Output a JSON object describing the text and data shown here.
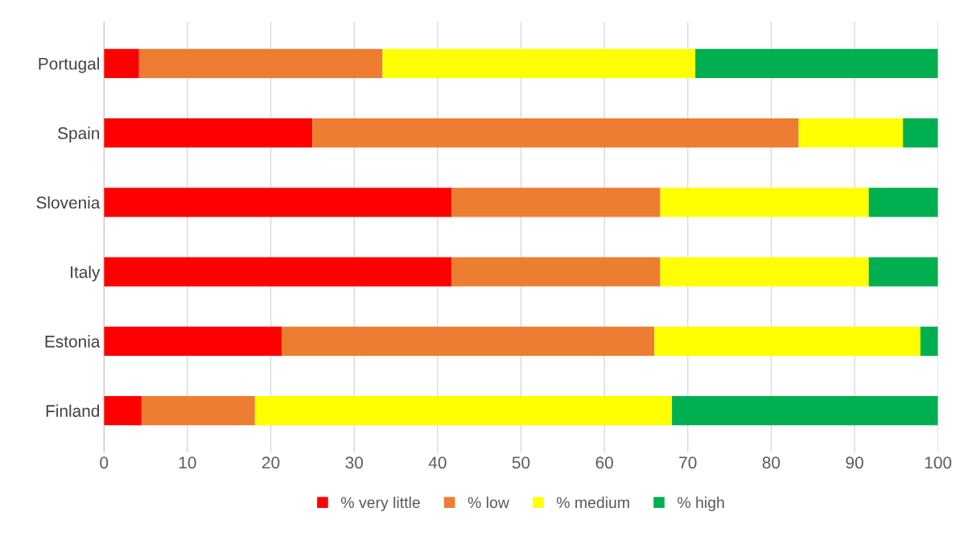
{
  "chart_data": {
    "type": "bar",
    "orientation": "horizontal",
    "stacked": true,
    "categories": [
      "Portugal",
      "Spain",
      "Slovenia",
      "Italy",
      "Estonia",
      "Finland"
    ],
    "series": [
      {
        "name": "% very little",
        "color": "#ff0000",
        "values": [
          4.2,
          25.0,
          41.7,
          41.7,
          21.3,
          4.5
        ]
      },
      {
        "name": "% low",
        "color": "#ed7d31",
        "values": [
          29.2,
          58.3,
          25.0,
          25.0,
          44.7,
          13.6
        ]
      },
      {
        "name": "% medium",
        "color": "#ffff00",
        "values": [
          37.5,
          12.5,
          25.0,
          25.0,
          31.9,
          50.0
        ]
      },
      {
        "name": "% high",
        "color": "#00b050",
        "values": [
          29.1,
          4.2,
          8.3,
          8.3,
          2.1,
          31.9
        ]
      }
    ],
    "xlim": [
      0,
      100
    ],
    "xticks": [
      0,
      10,
      20,
      30,
      40,
      50,
      60,
      70,
      80,
      90,
      100
    ],
    "grid": "x",
    "legend": "bottom"
  }
}
